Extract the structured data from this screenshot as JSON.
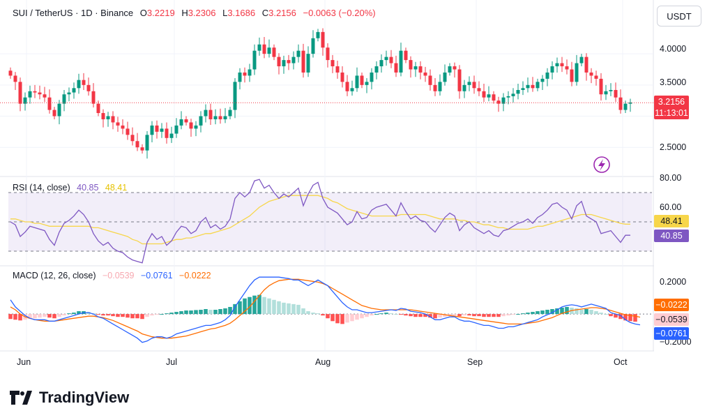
{
  "header": {
    "symbol": "SUI / TetherUS · 1D · Binance",
    "open_label": "O",
    "open": "3.2219",
    "high_label": "H",
    "high": "3.2306",
    "low_label": "L",
    "low": "3.1686",
    "close_label": "C",
    "close": "3.2156",
    "change": "−0.0063 (−0.20%)"
  },
  "currency_button": "USDT",
  "price_axis": [
    "4.0000",
    "3.5000",
    "2.5000"
  ],
  "price_tag": {
    "price": "3.2156",
    "countdown": "11:13:01"
  },
  "rsi": {
    "label": "RSI (14, close)",
    "rsi_value": "40.85",
    "ma_value": "48.41",
    "axis": [
      "80.00",
      "60.00"
    ],
    "tag_ma": "48.41",
    "tag_rsi": "40.85"
  },
  "macd": {
    "label": "MACD (12, 26, close)",
    "hist_value": "−0.0539",
    "macd_value": "−0.0761",
    "signal_value": "−0.0222",
    "axis": [
      "0.2000",
      "−0.2000"
    ],
    "tag_signal": "−0.0222",
    "tag_hist": "−0.0539",
    "tag_macd": "−0.0761"
  },
  "time_axis": [
    "Jun",
    "Jul",
    "Aug",
    "Sep",
    "Oct"
  ],
  "brand": "TradingView",
  "colors": {
    "up": "#089981",
    "down": "#f23645",
    "rsi": "#7e57c2",
    "rsi_ma": "#f7d64a",
    "macd": "#2962ff",
    "signal": "#ff6d00",
    "hist_up_strong": "#26a69a",
    "hist_up_weak": "#b2dfdb",
    "hist_dn_strong": "#ff5252",
    "hist_dn_weak": "#ffcdd2"
  },
  "chart_data": [
    {
      "type": "candlestick",
      "title": "SUI / TetherUS · 1D · Binance",
      "y_range": [
        2.2,
        4.55
      ],
      "closes": [
        3.65,
        3.55,
        3.2,
        3.3,
        3.4,
        3.38,
        3.35,
        3.3,
        3.1,
        3.0,
        3.2,
        3.35,
        3.38,
        3.45,
        3.58,
        3.5,
        3.4,
        3.2,
        3.05,
        2.95,
        3.0,
        2.9,
        2.85,
        2.8,
        2.7,
        2.6,
        2.5,
        2.45,
        2.7,
        2.85,
        2.75,
        2.8,
        2.65,
        2.72,
        2.85,
        2.95,
        2.9,
        2.8,
        2.85,
        3.0,
        3.1,
        2.95,
        3.0,
        2.95,
        3.0,
        3.1,
        3.55,
        3.7,
        3.65,
        3.75,
        4.05,
        4.15,
        4.0,
        4.1,
        3.95,
        3.8,
        3.9,
        3.85,
        3.95,
        4.05,
        3.7,
        4.0,
        4.25,
        4.35,
        4.1,
        3.9,
        3.8,
        3.7,
        3.55,
        3.4,
        3.45,
        3.65,
        3.5,
        3.55,
        3.7,
        3.8,
        3.9,
        3.95,
        3.85,
        3.7,
        4.05,
        3.9,
        3.75,
        3.8,
        3.7,
        3.65,
        3.5,
        3.4,
        3.55,
        3.7,
        3.8,
        3.75,
        3.4,
        3.5,
        3.55,
        3.45,
        3.4,
        3.3,
        3.35,
        3.25,
        3.2,
        3.3,
        3.32,
        3.36,
        3.42,
        3.45,
        3.5,
        3.45,
        3.55,
        3.6,
        3.7,
        3.8,
        3.85,
        3.8,
        3.75,
        3.55,
        3.85,
        3.95,
        3.7,
        3.65,
        3.6,
        3.35,
        3.4,
        3.42,
        3.3,
        3.1,
        3.2,
        3.22
      ],
      "price_line": 3.2156
    },
    {
      "type": "line",
      "title": "RSI (14, close)",
      "y_range": [
        20,
        80
      ],
      "reference_lines": [
        70,
        50,
        30
      ],
      "series": [
        {
          "name": "RSI",
          "values": [
            50,
            48,
            40,
            43,
            47,
            46,
            45,
            44,
            38,
            34,
            43,
            49,
            51,
            54,
            58,
            55,
            50,
            42,
            37,
            34,
            36,
            32,
            30,
            29,
            26,
            24,
            23,
            22,
            36,
            42,
            38,
            40,
            34,
            37,
            43,
            47,
            46,
            42,
            44,
            50,
            53,
            46,
            48,
            45,
            47,
            52,
            66,
            70,
            67,
            70,
            78,
            79,
            73,
            75,
            70,
            66,
            69,
            67,
            70,
            73,
            61,
            69,
            75,
            77,
            66,
            60,
            58,
            56,
            52,
            48,
            50,
            57,
            52,
            53,
            58,
            60,
            61,
            62,
            58,
            54,
            63,
            57,
            52,
            54,
            51,
            50,
            46,
            43,
            48,
            53,
            56,
            54,
            44,
            48,
            50,
            46,
            44,
            42,
            44,
            41,
            40,
            44,
            45,
            47,
            49,
            50,
            52,
            49,
            53,
            55,
            58,
            62,
            63,
            60,
            58,
            52,
            61,
            64,
            54,
            52,
            50,
            42,
            43,
            44,
            40,
            36,
            40.85,
            40.85
          ]
        },
        {
          "name": "RSI MA",
          "values": [
            52,
            52,
            51,
            50,
            50,
            49,
            49,
            48,
            47,
            47,
            47,
            47,
            47,
            47,
            47,
            47,
            47,
            46,
            46,
            45,
            44,
            43,
            42,
            41,
            40,
            38,
            37,
            35,
            35,
            35,
            35,
            35,
            36,
            37,
            38,
            38,
            39,
            39,
            40,
            41,
            42,
            42,
            43,
            44,
            45,
            46,
            48,
            50,
            52,
            54,
            57,
            60,
            62,
            64,
            65,
            66,
            67,
            68,
            68,
            68,
            68,
            68,
            68,
            68,
            67,
            66,
            64,
            63,
            61,
            59,
            58,
            57,
            56,
            55,
            54,
            54,
            54,
            54,
            54,
            54,
            55,
            55,
            55,
            55,
            55,
            55,
            54,
            53,
            52,
            52,
            52,
            52,
            51,
            51,
            50,
            50,
            49,
            48,
            48,
            47,
            46,
            46,
            45,
            45,
            45,
            45,
            45,
            46,
            47,
            47,
            48,
            49,
            50,
            51,
            52,
            53,
            54,
            55,
            55,
            55,
            54,
            53,
            52,
            51,
            50,
            49,
            48.41,
            48.41
          ]
        }
      ]
    },
    {
      "type": "bar",
      "title": "MACD (12, 26, close)",
      "y_range": [
        -0.26,
        0.33
      ],
      "series": [
        {
          "name": "Histogram",
          "values": [
            -0.035,
            -0.04,
            -0.045,
            -0.04,
            -0.035,
            -0.03,
            -0.025,
            -0.02,
            -0.025,
            -0.03,
            -0.02,
            -0.01,
            0.005,
            0.01,
            0.02,
            0.02,
            0.015,
            0.005,
            -0.005,
            -0.01,
            -0.01,
            -0.015,
            -0.02,
            -0.02,
            -0.025,
            -0.03,
            -0.03,
            -0.035,
            -0.02,
            -0.01,
            -0.005,
            0,
            0.005,
            0.01,
            0.015,
            0.02,
            0.025,
            0.025,
            0.028,
            0.03,
            0.035,
            0.03,
            0.03,
            0.035,
            0.04,
            0.05,
            0.07,
            0.09,
            0.11,
            0.12,
            0.13,
            0.135,
            0.12,
            0.11,
            0.1,
            0.09,
            0.08,
            0.075,
            0.07,
            0.065,
            0.04,
            0.02,
            0.01,
            0.005,
            -0.01,
            -0.03,
            -0.05,
            -0.065,
            -0.07,
            -0.06,
            -0.05,
            -0.04,
            -0.03,
            -0.02,
            -0.01,
            0,
            0.005,
            0.01,
            0.005,
            0,
            -0.005,
            -0.01,
            -0.015,
            -0.02,
            -0.02,
            -0.02,
            -0.025,
            -0.03,
            -0.025,
            -0.02,
            -0.015,
            -0.01,
            -0.015,
            -0.01,
            -0.01,
            -0.015,
            -0.015,
            -0.02,
            -0.02,
            -0.02,
            -0.02,
            -0.015,
            -0.01,
            -0.005,
            0,
            0.005,
            0.01,
            0.015,
            0.02,
            0.025,
            0.03,
            0.035,
            0.04,
            0.045,
            0.05,
            0.045,
            0.04,
            0.03,
            0.035,
            0.03,
            0.02,
            0.01,
            0,
            -0.015,
            -0.025,
            -0.035,
            -0.045,
            -0.05,
            -0.0539
          ]
        },
        {
          "name": "MACD",
          "values": [
            0.1,
            0.05,
            0.02,
            -0.01,
            -0.03,
            -0.04,
            -0.04,
            -0.04,
            -0.05,
            -0.05,
            -0.04,
            -0.03,
            -0.02,
            -0.01,
            0,
            0.01,
            0.01,
            0,
            -0.02,
            -0.03,
            -0.05,
            -0.07,
            -0.09,
            -0.11,
            -0.13,
            -0.15,
            -0.17,
            -0.2,
            -0.19,
            -0.17,
            -0.16,
            -0.16,
            -0.17,
            -0.16,
            -0.14,
            -0.13,
            -0.12,
            -0.11,
            -0.1,
            -0.09,
            -0.08,
            -0.08,
            -0.07,
            -0.06,
            -0.04,
            -0.01,
            0.05,
            0.1,
            0.15,
            0.2,
            0.24,
            0.26,
            0.26,
            0.26,
            0.26,
            0.26,
            0.255,
            0.25,
            0.24,
            0.24,
            0.22,
            0.2,
            0.22,
            0.24,
            0.22,
            0.2,
            0.16,
            0.12,
            0.08,
            0.05,
            0.03,
            0.03,
            0.02,
            0.01,
            0.01,
            0.015,
            0.02,
            0.025,
            0.03,
            0.025,
            0.04,
            0.035,
            0.02,
            0.015,
            0.01,
            0.0,
            -0.02,
            -0.04,
            -0.04,
            -0.03,
            -0.02,
            -0.02,
            -0.04,
            -0.05,
            -0.05,
            -0.06,
            -0.07,
            -0.08,
            -0.08,
            -0.09,
            -0.1,
            -0.1,
            -0.09,
            -0.09,
            -0.08,
            -0.07,
            -0.06,
            -0.05,
            -0.04,
            -0.02,
            -0.005,
            0.01,
            0.03,
            0.05,
            0.06,
            0.065,
            0.06,
            0.05,
            0.06,
            0.07,
            0.06,
            0.05,
            0.04,
            0.01,
            0.0,
            -0.01,
            -0.04,
            -0.06,
            -0.07,
            -0.0761
          ]
        },
        {
          "name": "Signal",
          "values": [
            0.05,
            0.03,
            0.0,
            -0.02,
            -0.03,
            -0.04,
            -0.045,
            -0.05,
            -0.05,
            -0.05,
            -0.045,
            -0.04,
            -0.035,
            -0.03,
            -0.025,
            -0.02,
            -0.015,
            -0.015,
            -0.02,
            -0.025,
            -0.035,
            -0.045,
            -0.06,
            -0.075,
            -0.09,
            -0.105,
            -0.12,
            -0.14,
            -0.15,
            -0.16,
            -0.165,
            -0.17,
            -0.17,
            -0.17,
            -0.165,
            -0.16,
            -0.155,
            -0.145,
            -0.135,
            -0.125,
            -0.115,
            -0.105,
            -0.1,
            -0.09,
            -0.08,
            -0.065,
            -0.04,
            -0.01,
            0.02,
            0.05,
            0.09,
            0.13,
            0.17,
            0.2,
            0.22,
            0.235,
            0.24,
            0.245,
            0.245,
            0.245,
            0.24,
            0.235,
            0.23,
            0.225,
            0.215,
            0.2,
            0.18,
            0.16,
            0.14,
            0.12,
            0.1,
            0.08,
            0.06,
            0.05,
            0.04,
            0.035,
            0.03,
            0.03,
            0.03,
            0.03,
            0.03,
            0.03,
            0.03,
            0.025,
            0.02,
            0.015,
            0.01,
            0.005,
            0.0,
            -0.005,
            -0.01,
            -0.015,
            -0.02,
            -0.025,
            -0.03,
            -0.035,
            -0.04,
            -0.045,
            -0.05,
            -0.055,
            -0.06,
            -0.065,
            -0.07,
            -0.07,
            -0.07,
            -0.07,
            -0.065,
            -0.06,
            -0.055,
            -0.045,
            -0.035,
            -0.025,
            -0.01,
            0.005,
            0.015,
            0.025,
            0.03,
            0.035,
            0.04,
            0.045,
            0.045,
            0.04,
            0.035,
            0.025,
            0.015,
            0.005,
            -0.005,
            -0.01,
            -0.015,
            -0.0222
          ]
        }
      ]
    }
  ]
}
